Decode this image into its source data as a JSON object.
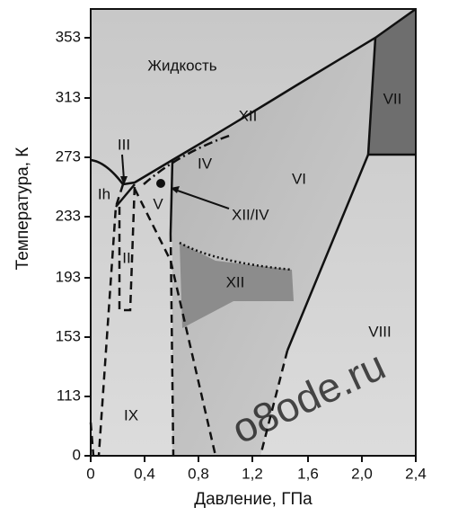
{
  "axes": {
    "x_label": "Давление, ГПа",
    "y_label": "Температура, К",
    "x_ticks": [
      "0",
      "0,4",
      "0,8",
      "1,2",
      "1,6",
      "2,0",
      "2,4"
    ],
    "y_ticks": [
      "0",
      "113",
      "153",
      "193",
      "233",
      "273",
      "313",
      "353"
    ]
  },
  "regions": [
    "Жидкость",
    "Ih",
    "II",
    "III",
    "IV",
    "V",
    "VI",
    "VII",
    "VIII",
    "IX",
    "XII",
    "XII"
  ],
  "annotations": [
    "XII/IV"
  ],
  "watermark": "o8ode.ru"
}
